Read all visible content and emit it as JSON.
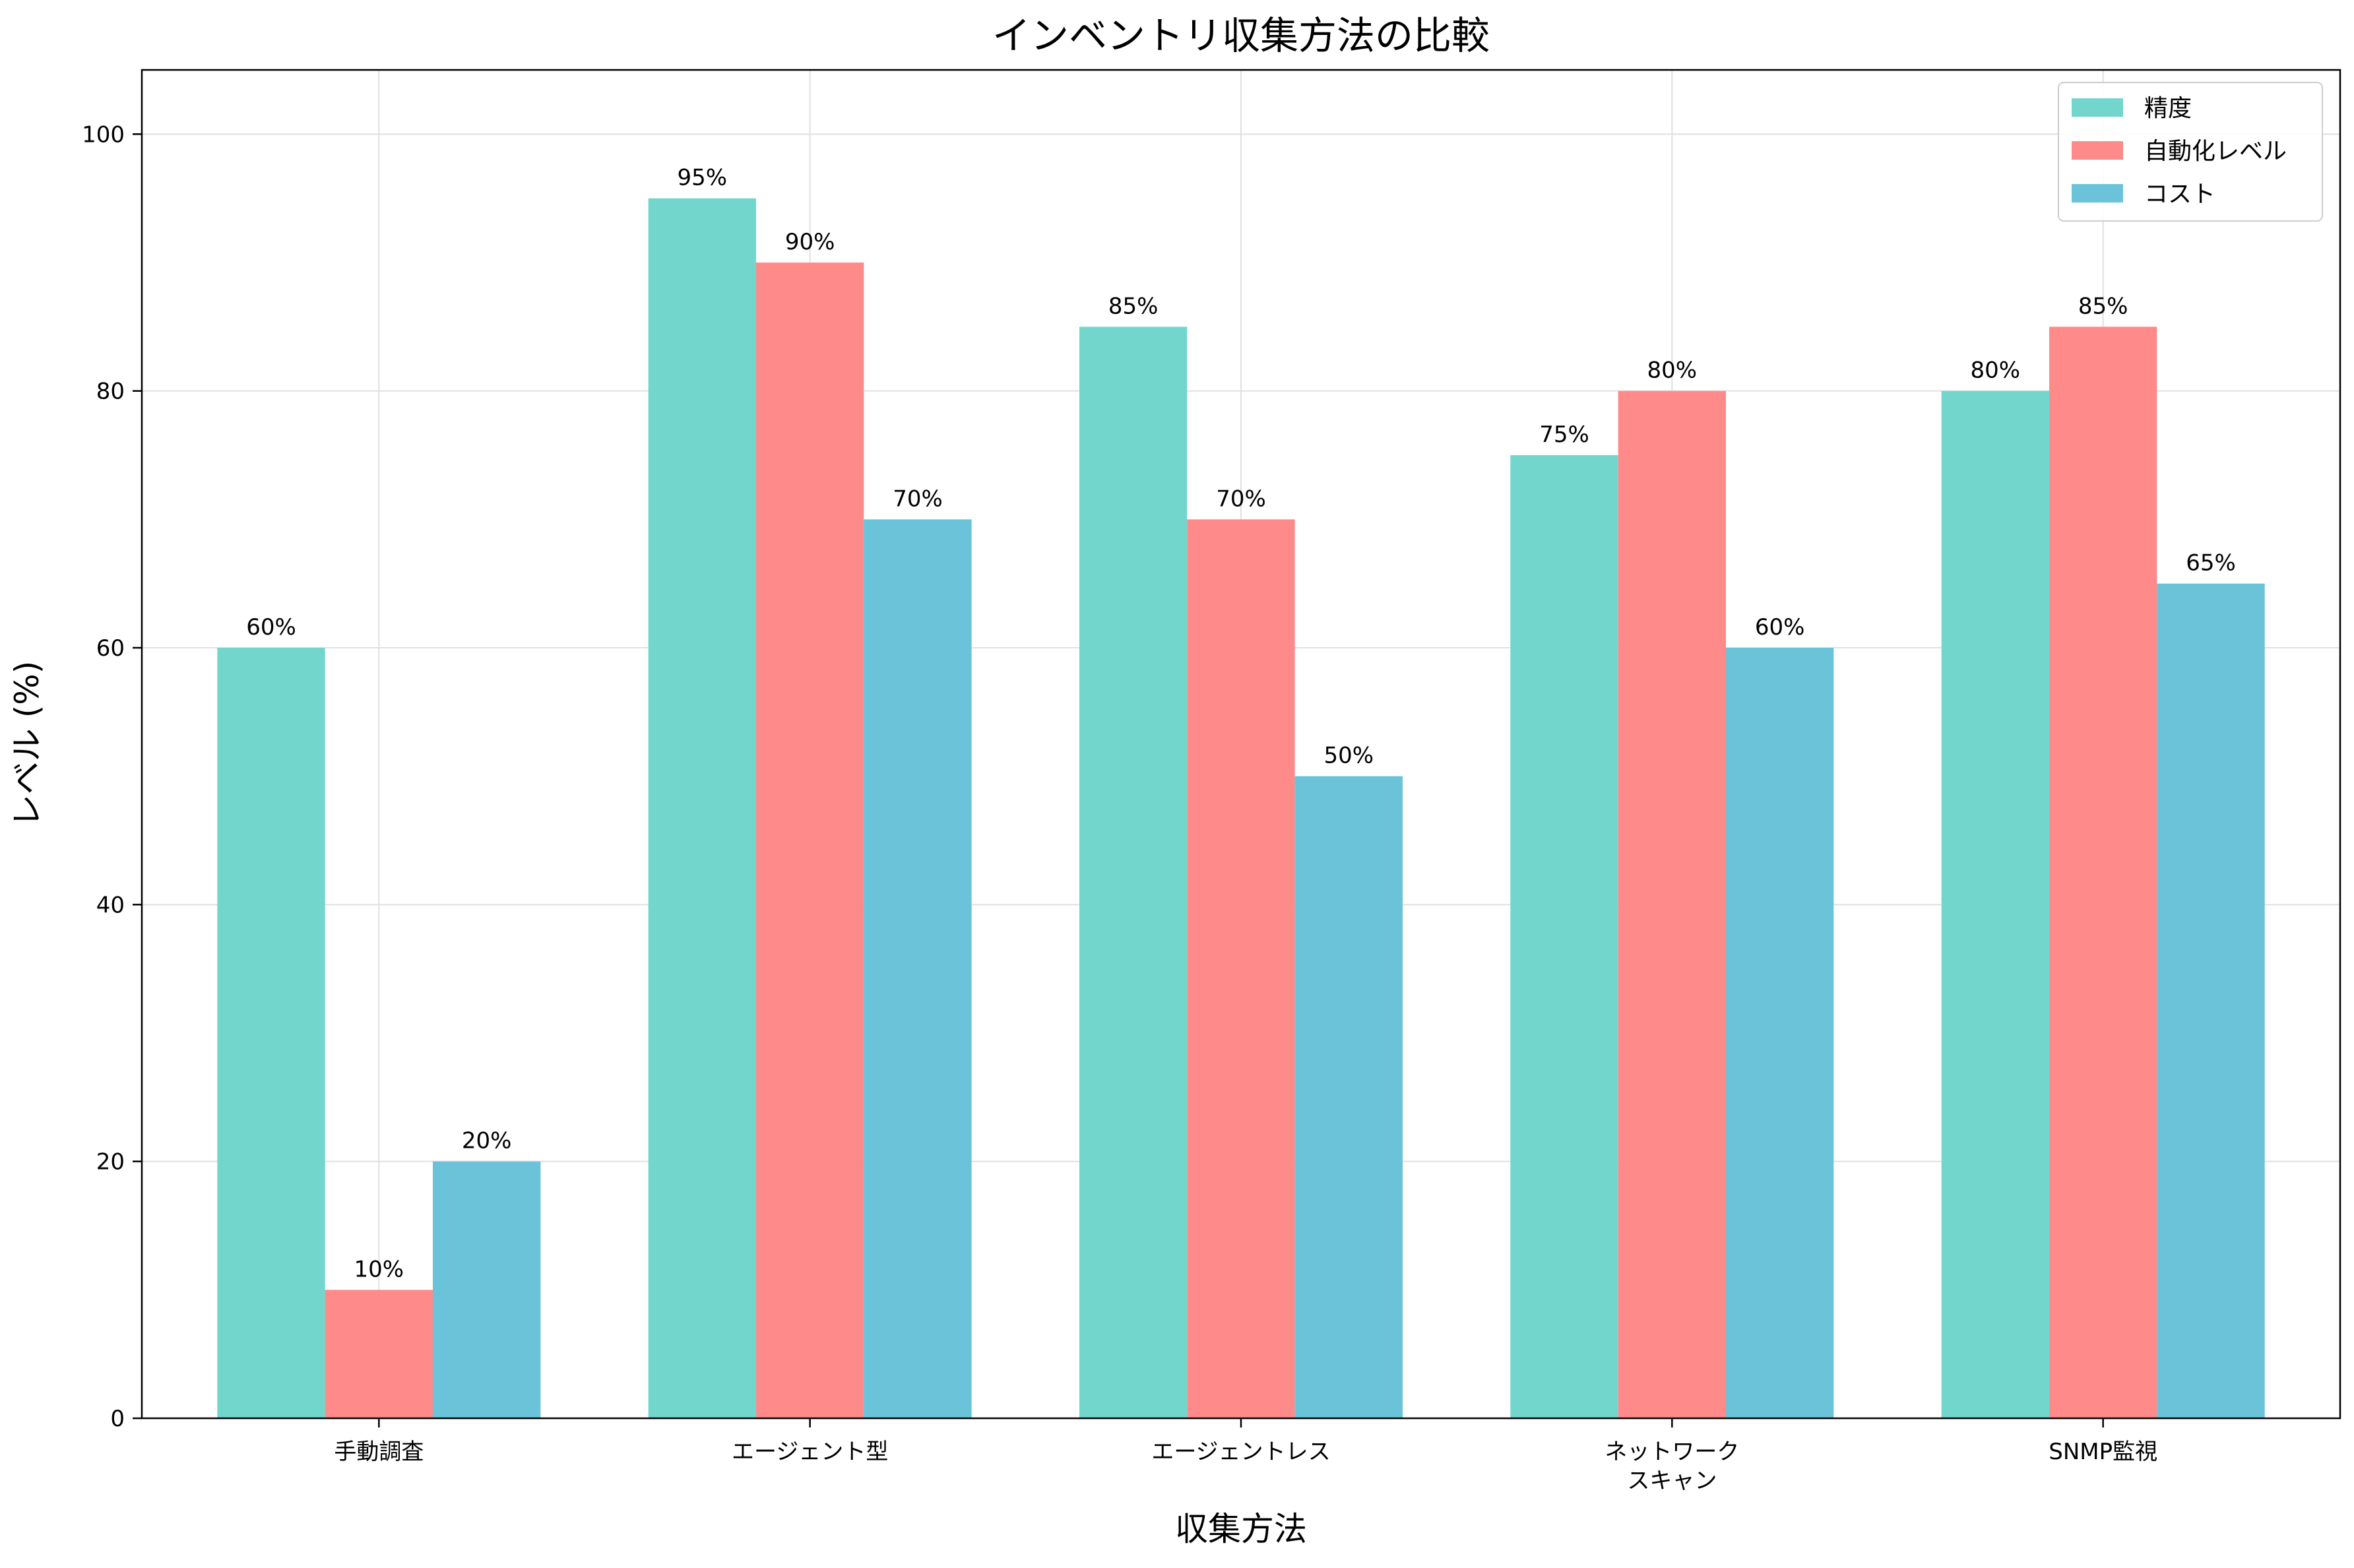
{
  "chart_data": {
    "type": "bar",
    "title": "インベントリ収集方法の比較",
    "xlabel": "収集方法",
    "ylabel": "レベル (%)",
    "categories": [
      "手動調査",
      "エージェント型",
      "エージェントレス",
      "ネットワーク\nスキャン",
      "SNMP監視"
    ],
    "series": [
      {
        "name": "精度",
        "values": [
          60,
          95,
          85,
          75,
          80
        ],
        "color": "#73D6CD"
      },
      {
        "name": "自動化レベル",
        "values": [
          10,
          90,
          70,
          80,
          85
        ],
        "color": "#FF8A8A"
      },
      {
        "name": "コスト",
        "values": [
          20,
          70,
          50,
          60,
          65
        ],
        "color": "#6AC3D8"
      }
    ],
    "value_suffix": "%",
    "ylim": [
      0,
      105
    ],
    "yticks": [
      0,
      20,
      40,
      60,
      80,
      100
    ],
    "grid": true,
    "legend_position": "top-right"
  }
}
